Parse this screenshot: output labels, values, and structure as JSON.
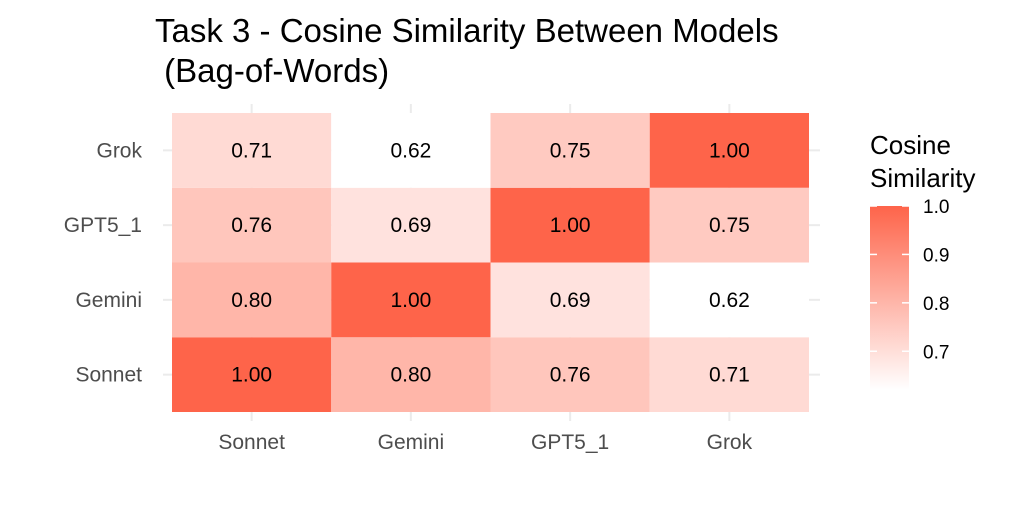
{
  "chart_data": {
    "type": "heatmap",
    "title": "Task 3 - Cosine Similarity Between Models",
    "subtitle": " (Bag-of-Words)",
    "x_categories": [
      "Sonnet",
      "Gemini",
      "GPT5_1",
      "Grok"
    ],
    "y_categories": [
      "Sonnet",
      "Gemini",
      "GPT5_1",
      "Grok"
    ],
    "values": [
      [
        1.0,
        0.8,
        0.76,
        0.71
      ],
      [
        0.8,
        1.0,
        0.69,
        0.62
      ],
      [
        0.76,
        0.69,
        1.0,
        0.75
      ],
      [
        0.71,
        0.62,
        0.75,
        1.0
      ]
    ],
    "labels": [
      [
        "1.00",
        "0.80",
        "0.76",
        "0.71"
      ],
      [
        "0.80",
        "1.00",
        "0.69",
        "0.62"
      ],
      [
        "0.76",
        "0.69",
        "1.00",
        "0.75"
      ],
      [
        "0.71",
        "0.62",
        "0.75",
        "1.00"
      ]
    ],
    "legend": {
      "title_lines": [
        "Cosine",
        "Similarity"
      ],
      "ticks": [
        "0.7",
        "0.8",
        "0.9",
        "1.0"
      ],
      "tick_values": [
        0.7,
        0.8,
        0.9,
        1.0
      ],
      "range": [
        0.62,
        1.0
      ],
      "placement": "right"
    },
    "colors": {
      "low": "#ffffff",
      "high": "#fe644a"
    },
    "grid": true
  }
}
